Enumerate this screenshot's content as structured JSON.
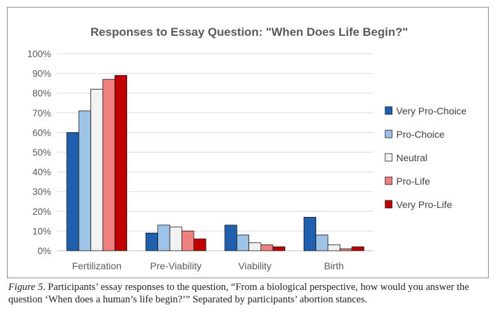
{
  "chart_data": {
    "type": "bar",
    "title": "Responses to Essay Question: \"When Does Life Begin?\"",
    "categories": [
      "Fertilization",
      "Pre-Viability",
      "Viability",
      "Birth"
    ],
    "series": [
      {
        "name": "Very Pro-Choice",
        "color": "#1f5fae",
        "values": [
          60,
          9,
          13,
          17
        ]
      },
      {
        "name": "Pro-Choice",
        "color": "#9dc3e6",
        "values": [
          71,
          13,
          8,
          8
        ]
      },
      {
        "name": "Neutral",
        "color": "#f2f2f2",
        "values": [
          82,
          12,
          4,
          3
        ]
      },
      {
        "name": "Pro-Life",
        "color": "#f08080",
        "values": [
          87,
          10,
          3,
          1
        ]
      },
      {
        "name": "Very Pro-Life",
        "color": "#c00000",
        "values": [
          89,
          6,
          2,
          2
        ]
      }
    ],
    "yticks": [
      "0%",
      "10%",
      "20%",
      "30%",
      "40%",
      "50%",
      "60%",
      "70%",
      "80%",
      "90%",
      "100%"
    ],
    "ylim": [
      0,
      100
    ],
    "grid": true,
    "legend": "right"
  },
  "caption": {
    "figure_label": "Figure 5",
    "text": ". Participants’ essay responses to the question, “From a biological perspective, how would you answer the question ‘When does a human’s life begin?’” Separated by participants’ abortion stances."
  }
}
